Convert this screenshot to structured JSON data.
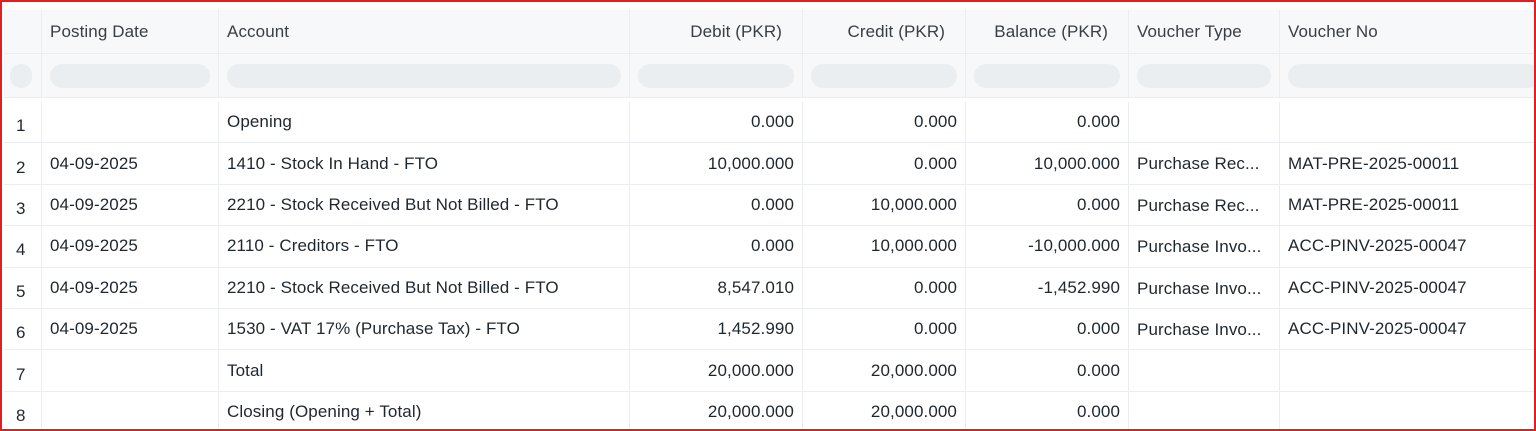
{
  "columns": {
    "posting_date": "Posting Date",
    "account": "Account",
    "debit": "Debit (PKR)",
    "credit": "Credit (PKR)",
    "balance": "Balance (PKR)",
    "voucher_type": "Voucher Type",
    "voucher_no": "Voucher No"
  },
  "rows": [
    {
      "idx": "1",
      "date": "",
      "account": "Opening",
      "debit": "0.000",
      "credit": "0.000",
      "balance": "0.000",
      "vtype": "",
      "vno": ""
    },
    {
      "idx": "2",
      "date": "04-09-2025",
      "account": "1410 - Stock In Hand - FTO",
      "debit": "10,000.000",
      "credit": "0.000",
      "balance": "10,000.000",
      "vtype": "Purchase Rec...",
      "vno": "MAT-PRE-2025-00011"
    },
    {
      "idx": "3",
      "date": "04-09-2025",
      "account": "2210 - Stock Received But Not Billed - FTO",
      "debit": "0.000",
      "credit": "10,000.000",
      "balance": "0.000",
      "vtype": "Purchase Rec...",
      "vno": "MAT-PRE-2025-00011"
    },
    {
      "idx": "4",
      "date": "04-09-2025",
      "account": "2110 - Creditors - FTO",
      "debit": "0.000",
      "credit": "10,000.000",
      "balance": "-10,000.000",
      "vtype": "Purchase Invo...",
      "vno": "ACC-PINV-2025-00047"
    },
    {
      "idx": "5",
      "date": "04-09-2025",
      "account": "2210 - Stock Received But Not Billed - FTO",
      "debit": "8,547.010",
      "credit": "0.000",
      "balance": "-1,452.990",
      "vtype": "Purchase Invo...",
      "vno": "ACC-PINV-2025-00047"
    },
    {
      "idx": "6",
      "date": "04-09-2025",
      "account": "1530 - VAT 17% (Purchase Tax) - FTO",
      "debit": "1,452.990",
      "credit": "0.000",
      "balance": "0.000",
      "vtype": "Purchase Invo...",
      "vno": "ACC-PINV-2025-00047"
    },
    {
      "idx": "7",
      "date": "",
      "account": "Total",
      "debit": "20,000.000",
      "credit": "20,000.000",
      "balance": "0.000",
      "vtype": "",
      "vno": ""
    },
    {
      "idx": "8",
      "date": "",
      "account": "Closing (Opening + Total)",
      "debit": "20,000.000",
      "credit": "20,000.000",
      "balance": "0.000",
      "vtype": "",
      "vno": ""
    }
  ]
}
